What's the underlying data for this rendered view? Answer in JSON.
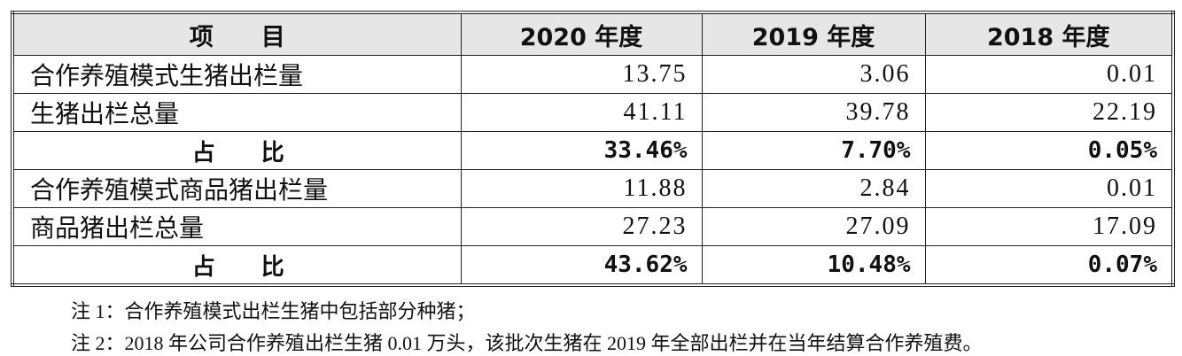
{
  "table": {
    "header": [
      "项　　目",
      "2020 年度",
      "2019 年度",
      "2018 年度"
    ],
    "rows": [
      [
        "合作养殖模式生猪出栏量",
        "13.75",
        "3.06",
        "0.01"
      ],
      [
        "生猪出栏总量",
        "41.11",
        "39.78",
        "22.19"
      ],
      [
        "占　　比",
        "33.46%",
        "7.70%",
        "0.05%"
      ],
      [
        "合作养殖模式商品猪出栏量",
        "11.88",
        "2.84",
        "0.01"
      ],
      [
        "商品猪出栏总量",
        "27.23",
        "27.09",
        "17.09"
      ],
      [
        "占　　比",
        "43.62%",
        "10.48%",
        "0.07%"
      ]
    ]
  },
  "notes": [
    "注 1：合作养殖模式出栏生猪中包括部分种猪；",
    "注 2：2018 年公司合作养殖出栏生猪 0.01 万头，该批次生猪在 2019 年全部出栏并在当年结算合作养殖费。"
  ]
}
